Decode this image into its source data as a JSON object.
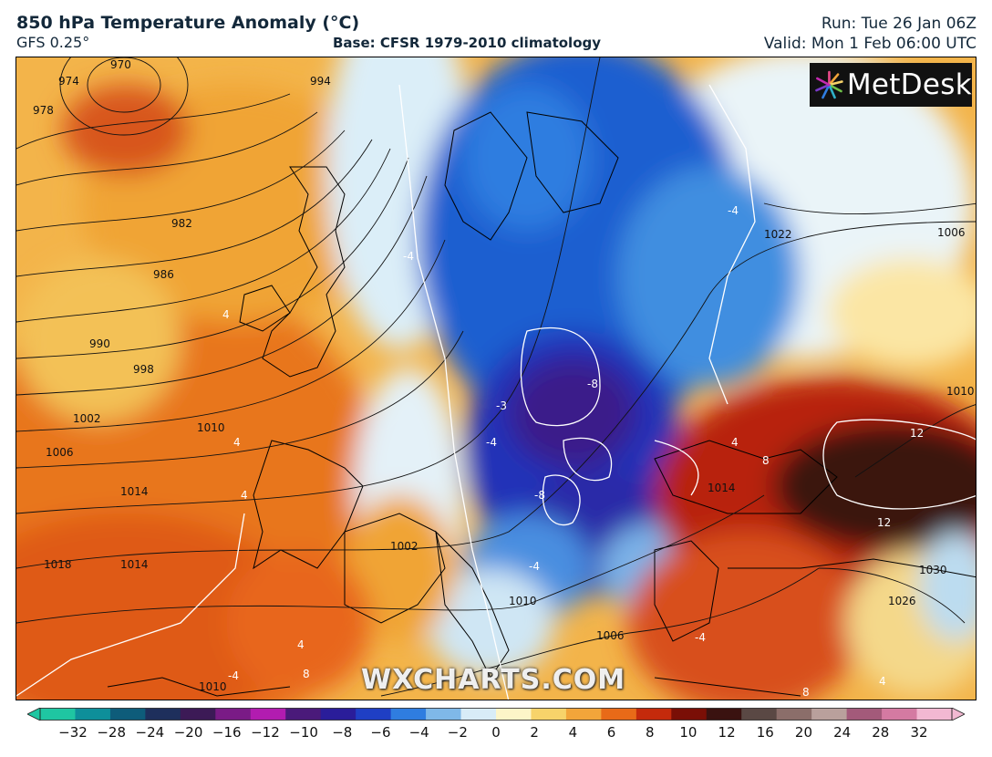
{
  "header": {
    "title": "850 hPa Temperature Anomaly (°C)",
    "model": "GFS 0.25°",
    "base": "Base: CFSR 1979-2010 climatology",
    "run": "Run: Tue 26 Jan 06Z",
    "valid": "Valid: Mon 1 Feb 06:00 UTC"
  },
  "logo": {
    "text": "MetDesk",
    "icon": "metdesk-starburst-icon"
  },
  "watermark": "WXCHARTS.COM",
  "isobar_labels": [
    "970",
    "974",
    "978",
    "982",
    "986",
    "990",
    "994",
    "998",
    "1002",
    "1006",
    "1010",
    "1014",
    "1018",
    "1022",
    "1006",
    "1010",
    "1014",
    "1002",
    "1010",
    "1014",
    "1022",
    "1030",
    "1026",
    "1010",
    "1006"
  ],
  "anomaly_labels": [
    "-4",
    "-4",
    "-4",
    "-8",
    "-3",
    "-4",
    "-8",
    "-4",
    "4",
    "4",
    "4",
    "4",
    "4",
    "8",
    "8",
    "12",
    "12",
    "8",
    "4",
    "-4"
  ],
  "colorbar": {
    "ticks": [
      "−32",
      "−28",
      "−24",
      "−20",
      "−16",
      "−12",
      "−10",
      "−8",
      "−6",
      "−4",
      "−2",
      "0",
      "2",
      "4",
      "6",
      "8",
      "10",
      "12",
      "16",
      "20",
      "24",
      "28",
      "32"
    ],
    "colors": [
      "#1fc6a2",
      "#0e8f9a",
      "#0e5c7a",
      "#1e2f5c",
      "#3c1a56",
      "#7a1b86",
      "#b21cb0",
      "#4a1a7a",
      "#2a1d9a",
      "#1f3fc4",
      "#2f7de0",
      "#7fb8e8",
      "#d8ecf7",
      "#fdf5c8",
      "#f7d36a",
      "#f2a53a",
      "#e86a18",
      "#c42a0c",
      "#7a0f06",
      "#3a1210",
      "#5a4844",
      "#8b6e6a",
      "#b9a09c",
      "#a35a7a",
      "#d47aa2",
      "#f2b8d2"
    ]
  }
}
